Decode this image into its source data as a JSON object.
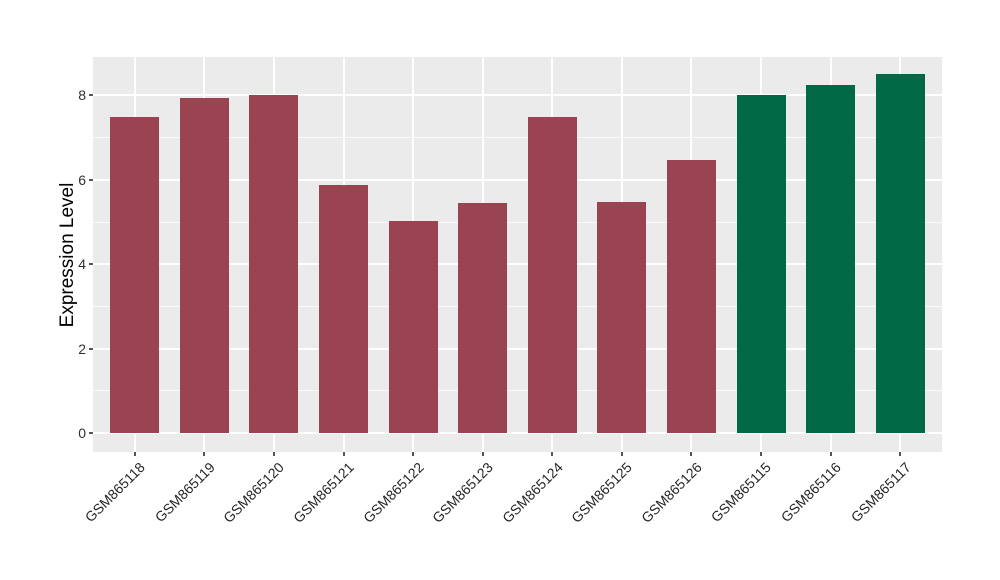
{
  "chart_data": {
    "type": "bar",
    "title": "",
    "xlabel": "",
    "ylabel": "Expression Level",
    "categories": [
      "GSM865118",
      "GSM865119",
      "GSM865120",
      "GSM865121",
      "GSM865122",
      "GSM865123",
      "GSM865124",
      "GSM865125",
      "GSM865126",
      "GSM865115",
      "GSM865116",
      "GSM865117"
    ],
    "values": [
      7.5,
      7.95,
      8.02,
      5.87,
      5.03,
      5.45,
      7.5,
      5.48,
      6.47,
      8.02,
      8.25,
      8.5
    ],
    "bar_colors": [
      "#9A4452",
      "#9A4452",
      "#9A4452",
      "#9A4452",
      "#9A4452",
      "#9A4452",
      "#9A4452",
      "#9A4452",
      "#9A4452",
      "#026946",
      "#026946",
      "#026946"
    ],
    "palette": {
      "red_group": "#9A4452",
      "green_group": "#026946"
    },
    "ylim": [
      0,
      8.91
    ],
    "yticks_major": [
      0,
      2,
      4,
      6,
      8
    ],
    "yticks_minor": [
      1,
      3,
      5,
      7
    ],
    "x_label_angle": 45,
    "grid": "major+minor",
    "legend": "none",
    "panel_bg": "#EBEBEB",
    "grid_color": "#FFFFFF",
    "axis_text_color": "#303030",
    "tick_color": "#555555"
  }
}
